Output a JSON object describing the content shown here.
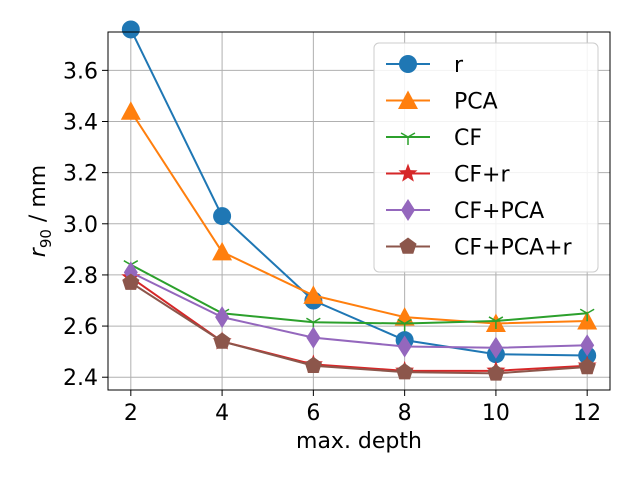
{
  "chart_data": {
    "type": "line",
    "xlabel": "max. depth",
    "ylabel_main": "r",
    "ylabel_sub": "90",
    "ylabel_rest": " / mm",
    "x": [
      2,
      4,
      6,
      8,
      10,
      12
    ],
    "xlim": [
      1.5,
      12.5
    ],
    "ylim": [
      2.35,
      3.75
    ],
    "xticks": [
      2,
      4,
      6,
      8,
      10,
      12
    ],
    "yticks": [
      2.4,
      2.6,
      2.8,
      3.0,
      3.2,
      3.4,
      3.6
    ],
    "ytick_labels": [
      "2.4",
      "2.6",
      "2.8",
      "3.0",
      "3.2",
      "3.4",
      "3.6"
    ],
    "grid": true,
    "legend_position": "top-right",
    "series": [
      {
        "name": "r",
        "color": "#1f77b4",
        "marker": "circle",
        "values": [
          3.76,
          3.03,
          2.7,
          2.545,
          2.49,
          2.485
        ]
      },
      {
        "name": "PCA",
        "color": "#ff7f0e",
        "marker": "triangle",
        "values": [
          3.44,
          2.89,
          2.72,
          2.635,
          2.61,
          2.62
        ]
      },
      {
        "name": "CF",
        "color": "#2ca02c",
        "marker": "tri-down",
        "values": [
          2.84,
          2.65,
          2.615,
          2.61,
          2.62,
          2.65
        ]
      },
      {
        "name": "CF+r",
        "color": "#d62728",
        "marker": "star",
        "values": [
          2.79,
          2.54,
          2.45,
          2.425,
          2.425,
          2.445
        ]
      },
      {
        "name": "CF+PCA",
        "color": "#9467bd",
        "marker": "diamond",
        "values": [
          2.81,
          2.635,
          2.555,
          2.52,
          2.515,
          2.525
        ]
      },
      {
        "name": "CF+PCA+r",
        "color": "#8c564b",
        "marker": "pentagon",
        "values": [
          2.77,
          2.54,
          2.445,
          2.42,
          2.415,
          2.44
        ]
      }
    ]
  }
}
